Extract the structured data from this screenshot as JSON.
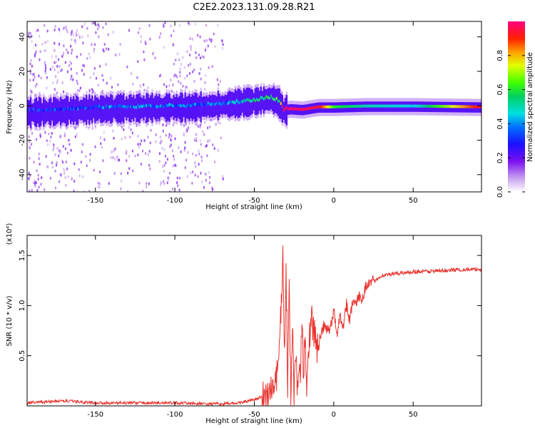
{
  "figure_title": "C2E2.2023.131.09.28.R21",
  "chart_data": [
    {
      "type": "heatmap",
      "title": "C2E2.2023.131.09.28.R21",
      "xlabel": "Height of straight line (km)",
      "ylabel": "Frequency (Hz)",
      "xlim": [
        -193,
        93
      ],
      "ylim": [
        -50,
        49
      ],
      "xticks": [
        -150,
        -100,
        -50,
        0,
        50
      ],
      "yticks": [
        -40,
        -20,
        0,
        20,
        40
      ],
      "colorbar": {
        "label": "Normalized spectral amplitude",
        "range": [
          0.0,
          1.0
        ],
        "ticks": [
          0.0,
          0.2,
          0.4,
          0.6,
          0.8
        ]
      },
      "ridge": {
        "x": [
          -193,
          -170,
          -150,
          -130,
          -110,
          -90,
          -75,
          -60,
          -50,
          -40,
          -35,
          -32,
          -28,
          -20,
          -10,
          0,
          20,
          50,
          93
        ],
        "frequency": [
          -4,
          -3,
          -2,
          -1.5,
          -1,
          -1,
          0,
          1.5,
          2.5,
          4,
          2,
          -3,
          -2,
          -2.5,
          -1,
          -1,
          -0.5,
          -0.5,
          -1
        ],
        "amplitude": [
          0.3,
          0.32,
          0.35,
          0.38,
          0.36,
          0.36,
          0.33,
          0.45,
          0.5,
          0.55,
          0.6,
          0.98,
          0.98,
          0.97,
          0.95,
          0.6,
          0.5,
          0.45,
          0.96
        ]
      },
      "grid": false
    },
    {
      "type": "line",
      "xlabel": "Height of straight line (km)",
      "ylabel": "SNR (10 * v/v)",
      "yscale_label": "(x10⁴)",
      "xlim": [
        -193,
        93
      ],
      "ylim": [
        0,
        1.7
      ],
      "xticks": [
        -150,
        -100,
        -50,
        0,
        50
      ],
      "yticks": [
        0.5,
        1.0,
        1.5
      ],
      "series": [
        {
          "color": "#e8332e",
          "x": [
            -193,
            -170,
            -150,
            -120,
            -100,
            -80,
            -70,
            -60,
            -50,
            -45,
            -40,
            -36,
            -34,
            -33,
            -32,
            -31,
            -30,
            -29,
            -28,
            -27,
            -26,
            -25,
            -24,
            -23,
            -22,
            -21,
            -20,
            -19,
            -18,
            -17,
            -16,
            -15,
            -14,
            -12,
            -10,
            -8,
            -6,
            -4,
            -2,
            0,
            2,
            4,
            6,
            8,
            10,
            12,
            14,
            16,
            18,
            20,
            25,
            30,
            40,
            50,
            60,
            70,
            80,
            93
          ],
          "y": [
            0.03,
            0.05,
            0.03,
            0.03,
            0.03,
            0.02,
            0.02,
            0.03,
            0.06,
            0.09,
            0.14,
            0.25,
            0.6,
            1.05,
            1.62,
            0.4,
            1.4,
            0.2,
            1.15,
            0.05,
            0.8,
            0.1,
            0.6,
            0.05,
            0.4,
            0.3,
            0.95,
            0.2,
            0.85,
            0.1,
            0.6,
            0.75,
            0.9,
            0.7,
            0.55,
            0.72,
            0.8,
            0.75,
            0.78,
            0.95,
            0.72,
            0.9,
            0.8,
            1.02,
            0.85,
            1.05,
            1.0,
            1.1,
            1.06,
            1.2,
            1.24,
            1.3,
            1.32,
            1.34,
            1.34,
            1.35,
            1.36,
            1.36
          ]
        }
      ],
      "grid": false
    }
  ]
}
